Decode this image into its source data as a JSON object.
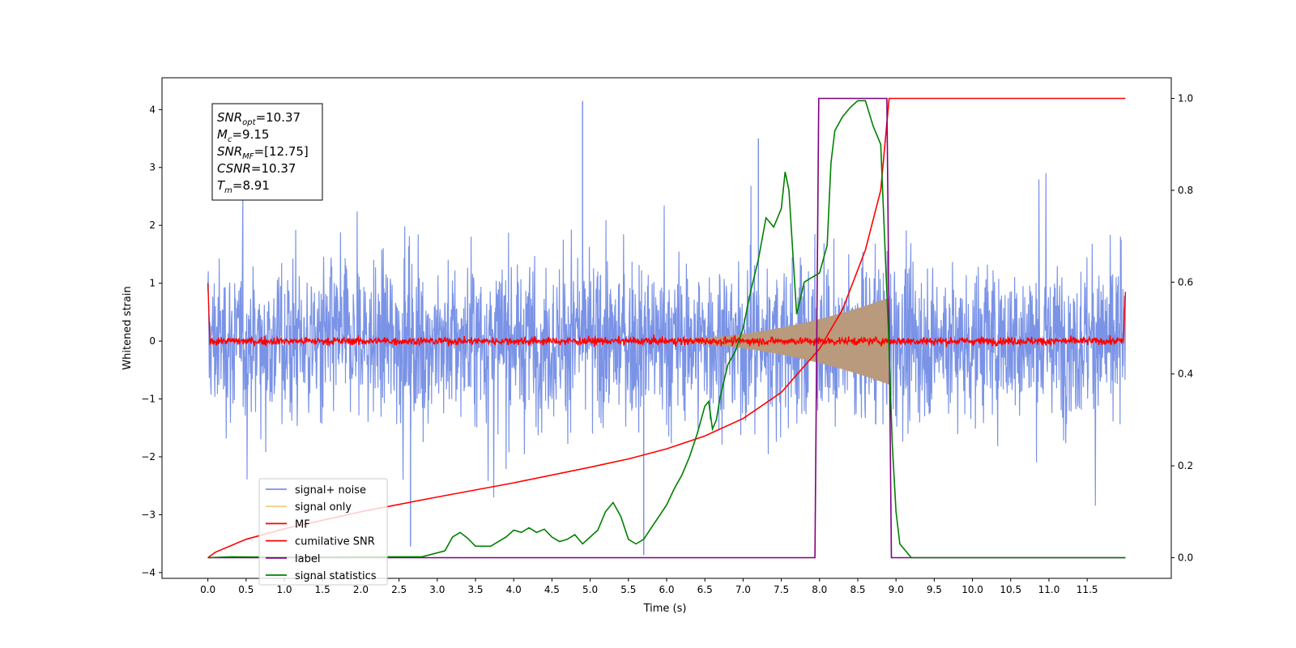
{
  "chart_data": {
    "type": "line",
    "xlabel": "Time (s)",
    "ylabel": "Whitened strain",
    "xlim": [
      -0.6,
      12.6
    ],
    "ylim": [
      -4.1,
      4.55
    ],
    "y2lim": [
      -0.045,
      1.045
    ],
    "x_ticks": [
      0.0,
      0.5,
      1.0,
      1.5,
      2.0,
      2.5,
      3.0,
      3.5,
      4.0,
      4.5,
      5.0,
      5.5,
      6.0,
      6.5,
      7.0,
      7.5,
      8.0,
      8.5,
      9.0,
      9.5,
      10.0,
      10.5,
      11.0,
      11.5
    ],
    "x_tick_labels": [
      "0.0",
      "0.5",
      "1.0",
      "1.5",
      "2.0",
      "2.5",
      "3.0",
      "3.5",
      "4.0",
      "4.5",
      "5.0",
      "5.5",
      "6.0",
      "6.5",
      "7.0",
      "7.5",
      "8.0",
      "8.5",
      "9.0",
      "9.5",
      "10.0",
      "10.5",
      "11.0",
      "11.5"
    ],
    "y_ticks": [
      -4,
      -3,
      -2,
      -1,
      0,
      1,
      2,
      3,
      4
    ],
    "y_tick_labels": [
      "−4",
      "−3",
      "−2",
      "−1",
      "0",
      "1",
      "2",
      "3",
      "4"
    ],
    "y2_ticks": [
      0.0,
      0.2,
      0.4,
      0.6,
      0.8,
      1.0
    ],
    "y2_tick_labels": [
      "0.0",
      "0.2",
      "0.4",
      "0.6",
      "0.8",
      "1.0"
    ],
    "grid": false,
    "legend_position": "lower-left",
    "annotation": {
      "lines": [
        {
          "main": "SNR",
          "sub": "opt",
          "value": "=10.37"
        },
        {
          "main": "M",
          "sub": "c",
          "value": "=9.15"
        },
        {
          "main": "SNR",
          "sub": "MF",
          "value": "=[12.75]"
        },
        {
          "main": "CSNR",
          "sub": "",
          "value": "=10.37"
        },
        {
          "main": "T",
          "sub": "m",
          "value": "=8.91"
        }
      ]
    },
    "series": [
      {
        "name": "signal+ noise",
        "color": "#7a93e6",
        "axis": "left",
        "style": "noise",
        "x_range": [
          0.0,
          12.0
        ],
        "amplitude_typical": 1.2,
        "amplitude_peak": 4.15,
        "spikes": [
          {
            "x": 4.9,
            "y": 4.15
          },
          {
            "x": 5.7,
            "y": -3.7
          },
          {
            "x": 2.65,
            "y": -3.55
          },
          {
            "x": 7.2,
            "y": 3.5
          }
        ]
      },
      {
        "name": "signal only",
        "color": "#f5cf80",
        "axis": "left",
        "style": "chirp",
        "x_range": [
          5.5,
          8.91
        ],
        "amplitude_end": 0.75
      },
      {
        "name": "MF",
        "color": "#ff0000",
        "axis": "left",
        "style": "mf",
        "x_range": [
          0.0,
          12.0
        ],
        "amplitude_typical": 0.08,
        "edge_values": {
          "start": 1.0,
          "end": 0.85
        }
      },
      {
        "name": "cumilative SNR",
        "color": "#ff0000",
        "axis": "right",
        "x": [
          0.0,
          0.1,
          0.5,
          1.0,
          2.0,
          3.0,
          4.0,
          5.0,
          5.5,
          6.0,
          6.5,
          7.0,
          7.5,
          8.0,
          8.3,
          8.6,
          8.8,
          8.91,
          9.0,
          12.0
        ],
        "values": [
          0.0,
          0.012,
          0.04,
          0.063,
          0.1,
          0.132,
          0.163,
          0.197,
          0.215,
          0.237,
          0.265,
          0.303,
          0.36,
          0.455,
          0.54,
          0.67,
          0.8,
          1.0,
          1.0,
          1.0
        ]
      },
      {
        "name": "label",
        "color": "#800080",
        "axis": "right",
        "x": [
          0.0,
          7.94,
          7.99,
          8.88,
          8.88,
          8.94,
          12.0
        ],
        "values": [
          0.0,
          0.0,
          1.0,
          1.0,
          1.0,
          0.0,
          0.0
        ]
      },
      {
        "name": "signal statistics",
        "color": "#008000",
        "axis": "right",
        "x": [
          0.0,
          0.3,
          1.0,
          2.0,
          2.8,
          3.1,
          3.2,
          3.3,
          3.4,
          3.5,
          3.7,
          3.8,
          3.9,
          4.0,
          4.1,
          4.2,
          4.3,
          4.4,
          4.5,
          4.6,
          4.7,
          4.8,
          4.9,
          5.0,
          5.1,
          5.2,
          5.3,
          5.4,
          5.5,
          5.6,
          5.7,
          5.8,
          5.9,
          6.0,
          6.1,
          6.2,
          6.3,
          6.4,
          6.5,
          6.55,
          6.6,
          6.65,
          6.7,
          6.8,
          6.9,
          7.0,
          7.1,
          7.2,
          7.3,
          7.4,
          7.5,
          7.55,
          7.6,
          7.7,
          7.8,
          7.9,
          8.0,
          8.1,
          8.15,
          8.2,
          8.3,
          8.4,
          8.5,
          8.6,
          8.7,
          8.8,
          8.85,
          8.9,
          8.95,
          9.0,
          9.05,
          9.2,
          12.0
        ],
        "values": [
          0.0,
          0.002,
          0.001,
          0.002,
          0.002,
          0.015,
          0.045,
          0.055,
          0.042,
          0.025,
          0.025,
          0.035,
          0.045,
          0.06,
          0.055,
          0.065,
          0.055,
          0.062,
          0.045,
          0.035,
          0.04,
          0.05,
          0.03,
          0.045,
          0.06,
          0.1,
          0.12,
          0.09,
          0.04,
          0.03,
          0.04,
          0.065,
          0.09,
          0.115,
          0.15,
          0.18,
          0.22,
          0.27,
          0.33,
          0.34,
          0.28,
          0.3,
          0.35,
          0.42,
          0.45,
          0.5,
          0.58,
          0.65,
          0.74,
          0.72,
          0.76,
          0.84,
          0.8,
          0.53,
          0.6,
          0.61,
          0.62,
          0.68,
          0.86,
          0.93,
          0.96,
          0.98,
          0.995,
          0.995,
          0.94,
          0.9,
          0.7,
          0.5,
          0.25,
          0.1,
          0.03,
          0.0,
          0.0
        ]
      }
    ]
  }
}
